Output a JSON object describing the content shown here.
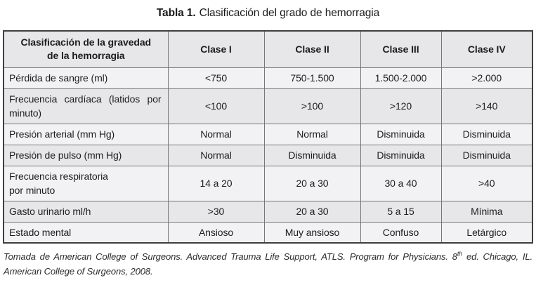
{
  "title": {
    "label": "Tabla 1.",
    "text": "Clasificación del grado de hemorragia"
  },
  "table": {
    "header": [
      "Clasificación de la gravedad\nde la hemorragia",
      "Clase I",
      "Clase II",
      "Clase III",
      "Clase IV"
    ],
    "rows": [
      {
        "label": "Pérdida de sangre (ml)",
        "values": [
          "<750",
          "750-1.500",
          "1.500-2.000",
          ">2.000"
        ]
      },
      {
        "label": "Frecuencia cardíaca (latidos por minuto)",
        "values": [
          "<100",
          ">100",
          ">120",
          ">140"
        ]
      },
      {
        "label": "Presión arterial (mm Hg)",
        "values": [
          "Normal",
          "Normal",
          "Disminuida",
          "Disminuida"
        ]
      },
      {
        "label": "Presión de pulso (mm Hg)",
        "values": [
          "Normal",
          "Disminuida",
          "Disminuida",
          "Disminuida"
        ]
      },
      {
        "label": "Frecuencia respiratoria\npor minuto",
        "values": [
          "14 a 20",
          "20 a 30",
          "30 a 40",
          ">40"
        ]
      },
      {
        "label": "Gasto urinario ml/h",
        "values": [
          ">30",
          "20 a 30",
          "5 a 15",
          "Mínima"
        ]
      },
      {
        "label": "Estado mental",
        "values": [
          "Ansioso",
          "Muy ansioso",
          "Confuso",
          "Letárgico"
        ]
      }
    ]
  },
  "footer": {
    "text_before_sup": "Tomada de American College of Surgeons. Advanced Trauma Life Support, ATLS. Program for Physicians. 8",
    "sup": "th",
    "text_after_sup": " ed. Chicago, IL. American College of Surgeons, 2008."
  },
  "colors": {
    "row_light": "#f2f2f4",
    "row_shaded": "#e7e7e9",
    "border_inner": "#777777",
    "border_outer": "#3f3f3f",
    "text": "#1d1d1f"
  }
}
